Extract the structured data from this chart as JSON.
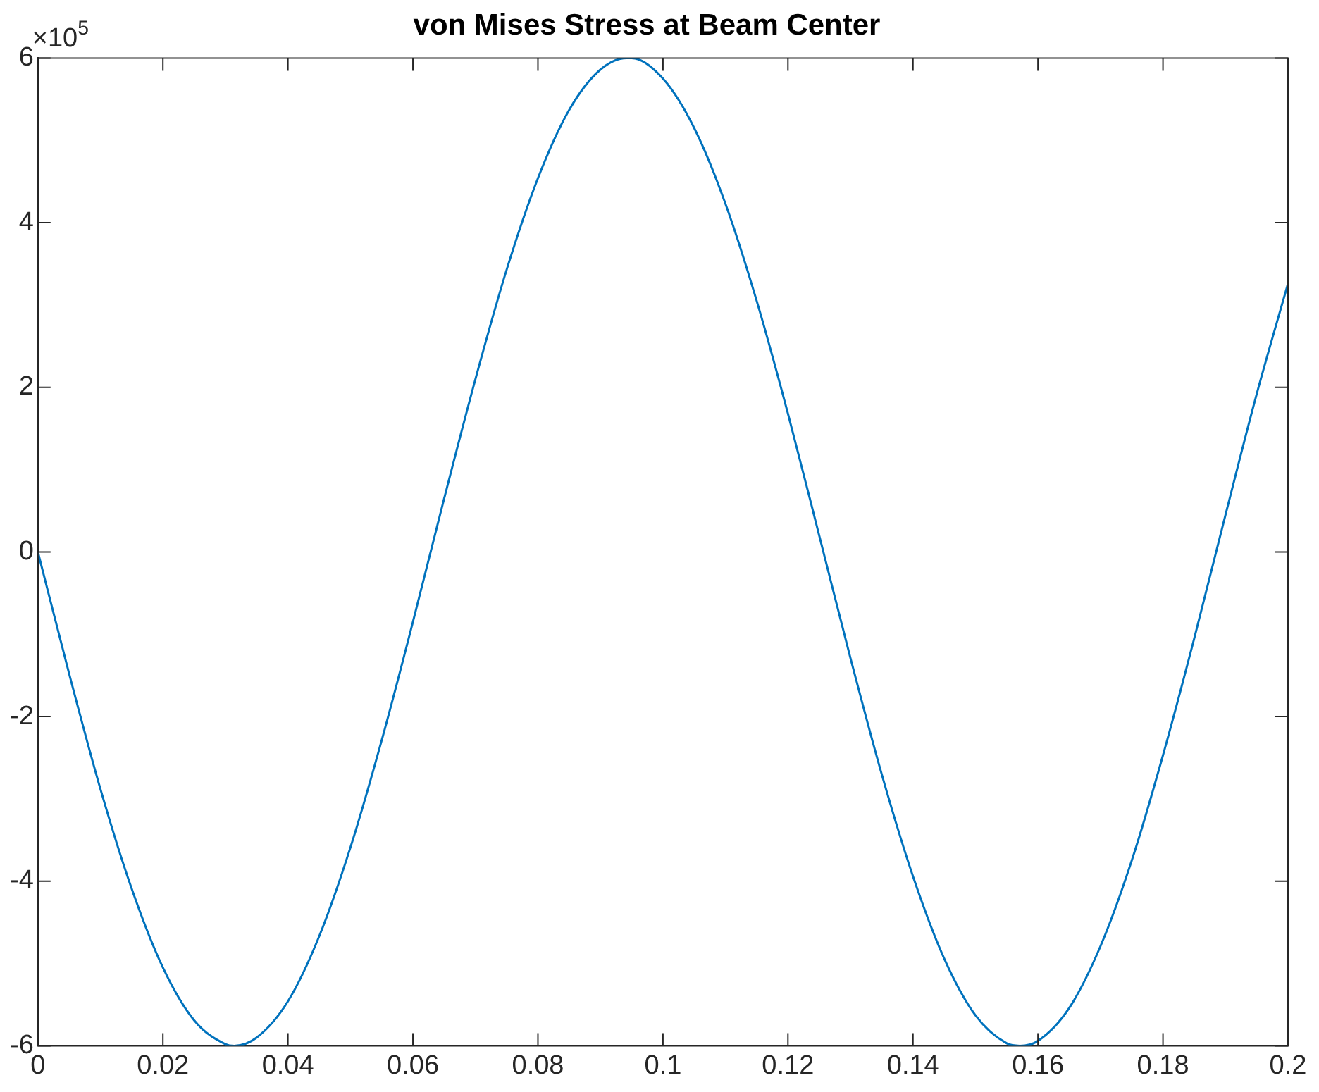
{
  "chart_data": {
    "type": "line",
    "title": "von Mises Stress at Beam Center",
    "annotations": [
      "×10$^{5}$"
    ],
    "series": [
      {
        "color": "#0072bd",
        "x": [
          0,
          0.005,
          0.01,
          0.015,
          0.02,
          0.025,
          0.03,
          0.0314,
          0.035,
          0.04,
          0.045,
          0.05,
          0.055,
          0.06,
          0.065,
          0.07,
          0.075,
          0.08,
          0.085,
          0.09,
          0.0942,
          0.095,
          0.1,
          0.105,
          0.11,
          0.115,
          0.12,
          0.125,
          0.13,
          0.135,
          0.14,
          0.145,
          0.15,
          0.155,
          0.1571,
          0.16,
          0.165,
          0.17,
          0.175,
          0.18,
          0.185,
          0.19,
          0.195,
          0.2
        ],
        "values": [
          0,
          -1.48,
          -2.88,
          -4.09,
          -5.05,
          -5.69,
          -5.98,
          -6,
          -5.9,
          -5.46,
          -4.67,
          -3.59,
          -2.29,
          -0.85,
          0.65,
          2.1,
          3.43,
          4.54,
          5.37,
          5.86,
          6,
          6,
          5.75,
          5.15,
          4.23,
          3.05,
          1.68,
          0.2,
          -1.29,
          -2.7,
          -3.94,
          -4.94,
          -5.63,
          -5.97,
          -6,
          -5.94,
          -5.54,
          -4.79,
          -3.75,
          -2.47,
          -1.05,
          0.45,
          1.92,
          3.26
        ]
      }
    ],
    "xlim": [
      0,
      0.2
    ],
    "xticks": [
      0,
      0.02,
      0.04,
      0.06,
      0.08,
      0.1,
      0.12,
      0.14,
      0.16,
      0.18,
      0.2
    ],
    "ylim": [
      -6,
      6
    ],
    "yticks": [
      -6,
      -4,
      -2,
      0,
      2,
      4,
      6
    ],
    "grid": false,
    "legend": false,
    "marker": "none",
    "line_style": "solid"
  }
}
